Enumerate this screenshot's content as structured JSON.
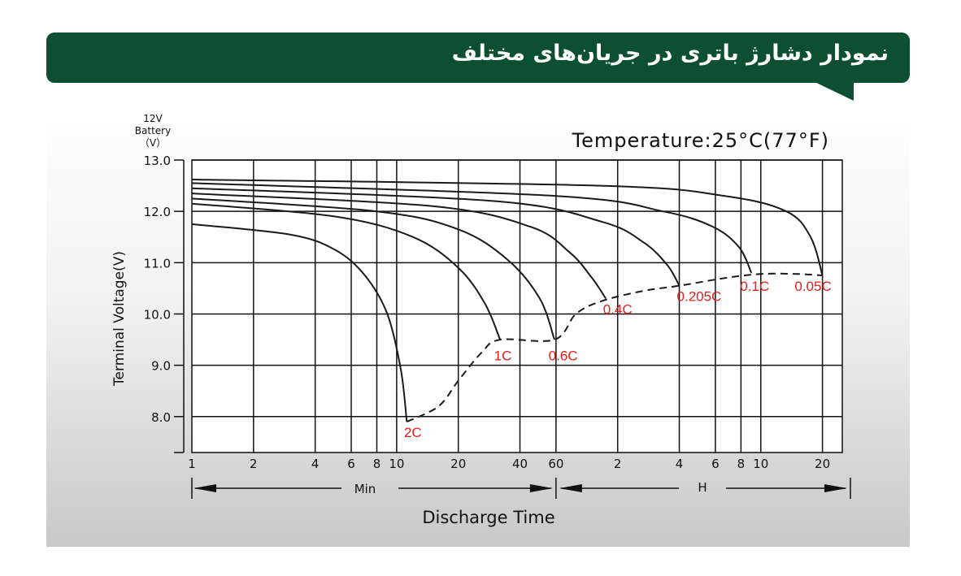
{
  "header": {
    "title": "نمودار دشارژ باتری در جریان‌های مختلف"
  },
  "chart_data": {
    "type": "line",
    "title": "",
    "annotation": "Temperature:25°C(77°F)",
    "battery_label": [
      "12V",
      "Battery",
      "（V）"
    ],
    "xlabel": "Discharge Time",
    "ylabel": "Terminal Voltage(V)",
    "x_unit_left": "Min",
    "x_unit_right": "H",
    "ylim": [
      7.3,
      13.0
    ],
    "y_ticks": [
      {
        "label": "13.0",
        "value": 13.0
      },
      {
        "label": "12.0",
        "value": 12.0
      },
      {
        "label": "11.0",
        "value": 11.0
      },
      {
        "label": "10.0",
        "value": 10.0
      },
      {
        "label": "9.0",
        "value": 9.0
      },
      {
        "label": "8.0",
        "value": 8.0
      }
    ],
    "x_ticks": [
      {
        "label": "1",
        "minutes": 1
      },
      {
        "label": "2",
        "minutes": 2
      },
      {
        "label": "4",
        "minutes": 4
      },
      {
        "label": "6",
        "minutes": 6
      },
      {
        "label": "8",
        "minutes": 8
      },
      {
        "label": "10",
        "minutes": 10
      },
      {
        "label": "20",
        "minutes": 20
      },
      {
        "label": "40",
        "minutes": 40
      },
      {
        "label": "60",
        "minutes": 60
      },
      {
        "label": "2",
        "minutes": 120
      },
      {
        "label": "4",
        "minutes": 240
      },
      {
        "label": "6",
        "minutes": 360
      },
      {
        "label": "8",
        "minutes": 480
      },
      {
        "label": "10",
        "minutes": 600
      },
      {
        "label": "20",
        "minutes": 1200
      }
    ],
    "xlim_minutes": [
      1,
      1500
    ],
    "series": [
      {
        "name": "2C",
        "points": [
          [
            1,
            11.75
          ],
          [
            3,
            11.55
          ],
          [
            5,
            11.25
          ],
          [
            7,
            10.75
          ],
          [
            9,
            10.0
          ],
          [
            10.5,
            8.9
          ],
          [
            11.2,
            7.9
          ]
        ]
      },
      {
        "name": "1C",
        "points": [
          [
            1,
            12.15
          ],
          [
            5,
            11.9
          ],
          [
            12,
            11.5
          ],
          [
            20,
            10.9
          ],
          [
            27,
            10.2
          ],
          [
            32,
            9.5
          ]
        ]
      },
      {
        "name": "0.6C",
        "points": [
          [
            1,
            12.25
          ],
          [
            8,
            12.0
          ],
          [
            20,
            11.65
          ],
          [
            35,
            11.05
          ],
          [
            50,
            10.3
          ],
          [
            59,
            9.5
          ]
        ]
      },
      {
        "name": "0.4C",
        "points": [
          [
            1,
            12.35
          ],
          [
            15,
            12.1
          ],
          [
            45,
            11.7
          ],
          [
            70,
            11.2
          ],
          [
            90,
            10.7
          ],
          [
            105,
            10.3
          ]
        ]
      },
      {
        "name": "0.205C",
        "points": [
          [
            1,
            12.45
          ],
          [
            30,
            12.2
          ],
          [
            100,
            11.8
          ],
          [
            160,
            11.4
          ],
          [
            210,
            10.95
          ],
          [
            240,
            10.55
          ]
        ]
      },
      {
        "name": "0.1C",
        "points": [
          [
            1,
            12.55
          ],
          [
            60,
            12.3
          ],
          [
            200,
            12.0
          ],
          [
            350,
            11.7
          ],
          [
            470,
            11.3
          ],
          [
            540,
            10.8
          ]
        ]
      },
      {
        "name": "0.05C",
        "points": [
          [
            1,
            12.62
          ],
          [
            100,
            12.5
          ],
          [
            400,
            12.3
          ],
          [
            800,
            12.0
          ],
          [
            1050,
            11.5
          ],
          [
            1200,
            10.75
          ]
        ]
      }
    ],
    "end_voltage_line": {
      "style": "dashed",
      "points": [
        [
          11.2,
          7.9
        ],
        [
          16,
          8.2
        ],
        [
          20,
          8.7
        ],
        [
          26,
          9.25
        ],
        [
          32,
          9.5
        ],
        [
          59,
          9.5
        ],
        [
          75,
          10.0
        ],
        [
          100,
          10.25
        ],
        [
          160,
          10.45
        ],
        [
          240,
          10.55
        ],
        [
          400,
          10.7
        ],
        [
          600,
          10.78
        ],
        [
          900,
          10.78
        ],
        [
          1200,
          10.75
        ]
      ]
    },
    "series_labels": [
      {
        "text": "2C",
        "minutes": 12,
        "v": 7.6
      },
      {
        "text": "1C",
        "minutes": 33,
        "v": 9.1
      },
      {
        "text": "0.6C",
        "minutes": 65,
        "v": 9.1
      },
      {
        "text": "0.4C",
        "minutes": 120,
        "v": 10.0
      },
      {
        "text": "0.205C",
        "minutes": 300,
        "v": 10.25
      },
      {
        "text": "0.1C",
        "minutes": 560,
        "v": 10.45
      },
      {
        "text": "0.05C",
        "minutes": 1080,
        "v": 10.45
      }
    ],
    "grid": true,
    "colors": {
      "curve": "#1a1a1a",
      "label": "#e0201a",
      "banner": "#0d4f31"
    }
  }
}
